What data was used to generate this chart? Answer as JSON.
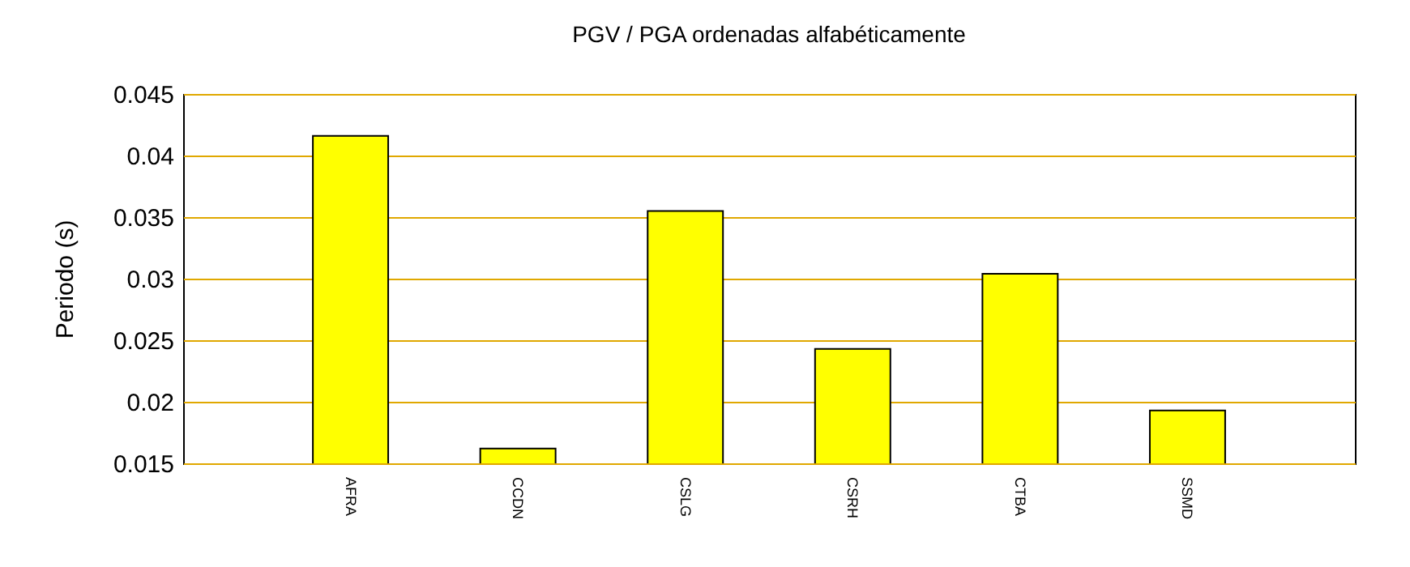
{
  "chart_data": {
    "type": "bar",
    "title": "PGV / PGA ordenadas alfabéticamente",
    "ylabel": "Periodo (s)",
    "categories": [
      "AFRA",
      "CCDN",
      "CSLG",
      "CSRH",
      "CTBA",
      "SSMD"
    ],
    "values": [
      0.0416,
      0.0162,
      0.0355,
      0.0243,
      0.0304,
      0.0193
    ],
    "color": "#ffff00",
    "ylim": [
      0.015,
      0.045
    ],
    "yticks": [
      0.015,
      0.02,
      0.025,
      0.03,
      0.035,
      0.04,
      0.045
    ],
    "grid": "y"
  }
}
